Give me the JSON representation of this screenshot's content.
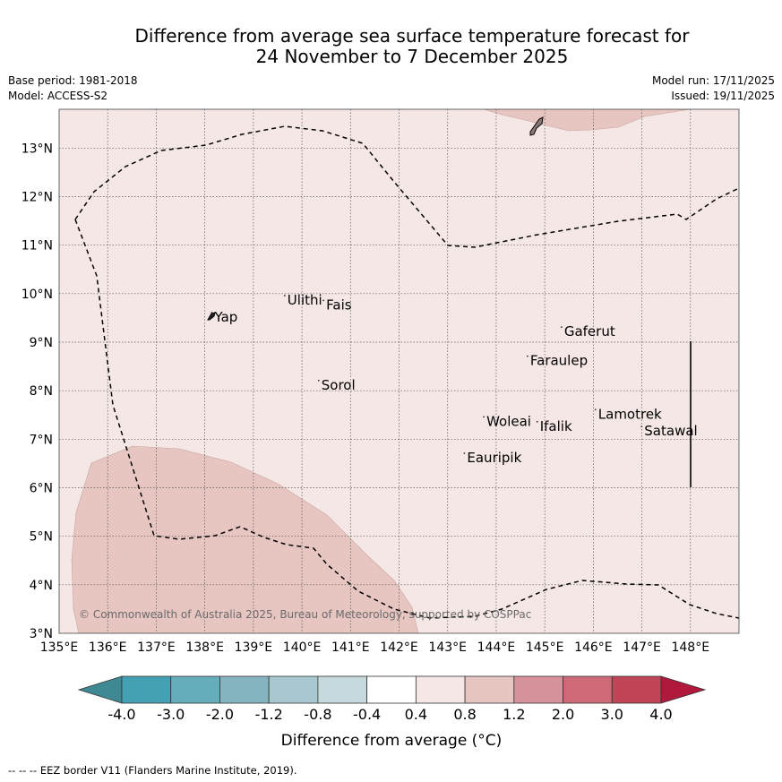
{
  "title": {
    "line1": "Difference from average sea surface temperature forecast for",
    "line2": "24 November to 7 December 2025"
  },
  "meta": {
    "base_period": "Base period: 1981-2018",
    "model": "Model: ACCESS-S2",
    "model_run": "Model run: 17/11/2025",
    "issued": "Issued: 19/11/2025"
  },
  "map": {
    "lon_range": [
      135,
      149
    ],
    "lat_range": [
      3,
      13.8
    ],
    "lon_ticks": [
      "135°E",
      "136°E",
      "137°E",
      "138°E",
      "139°E",
      "140°E",
      "141°E",
      "142°E",
      "143°E",
      "144°E",
      "145°E",
      "146°E",
      "147°E",
      "148°E"
    ],
    "lat_ticks": [
      "3°N",
      "4°N",
      "5°N",
      "6°N",
      "7°N",
      "8°N",
      "9°N",
      "10°N",
      "11°N",
      "12°N",
      "13°N"
    ],
    "background_anomaly_class": "0.4 to 0.8",
    "warm_patch_class": "0.8 to 1.2",
    "copyright": "© Commonwealth of Australia 2025, Bureau of Meteorology, supported by COSPPac",
    "places": [
      {
        "name": "Yap",
        "lon": 138.2,
        "lat": 9.5
      },
      {
        "name": "Ulithi",
        "lon": 139.7,
        "lat": 9.85
      },
      {
        "name": "Fais",
        "lon": 140.5,
        "lat": 9.75
      },
      {
        "name": "Sorol",
        "lon": 140.4,
        "lat": 8.1
      },
      {
        "name": "Gaferut",
        "lon": 145.4,
        "lat": 9.2
      },
      {
        "name": "Faraulep",
        "lon": 144.7,
        "lat": 8.6
      },
      {
        "name": "Woleai",
        "lon": 143.8,
        "lat": 7.35
      },
      {
        "name": "Ifalik",
        "lon": 144.9,
        "lat": 7.25
      },
      {
        "name": "Lamotrek",
        "lon": 146.1,
        "lat": 7.5
      },
      {
        "name": "Satawal",
        "lon": 147.05,
        "lat": 7.15
      },
      {
        "name": "Eauripik",
        "lon": 143.4,
        "lat": 6.6
      }
    ]
  },
  "colorbar": {
    "labels": [
      "-4.0",
      "-3.0",
      "-2.0",
      "-1.2",
      "-0.8",
      "-0.4",
      "0.4",
      "0.8",
      "1.2",
      "2.0",
      "3.0",
      "4.0"
    ],
    "colors": [
      "#3e8994",
      "#44a1b4",
      "#66adbc",
      "#85b4c1",
      "#a8c8cf",
      "#c8d9dd",
      "#ffffff",
      "#f4e7e6",
      "#e7c5c1",
      "#d6929a",
      "#cd6978",
      "#c04657",
      "#b0183c"
    ],
    "label": "Difference from average (°C)"
  },
  "footer": "--  --  -- EEZ border V11 (Flanders Marine Institute, 2019)."
}
